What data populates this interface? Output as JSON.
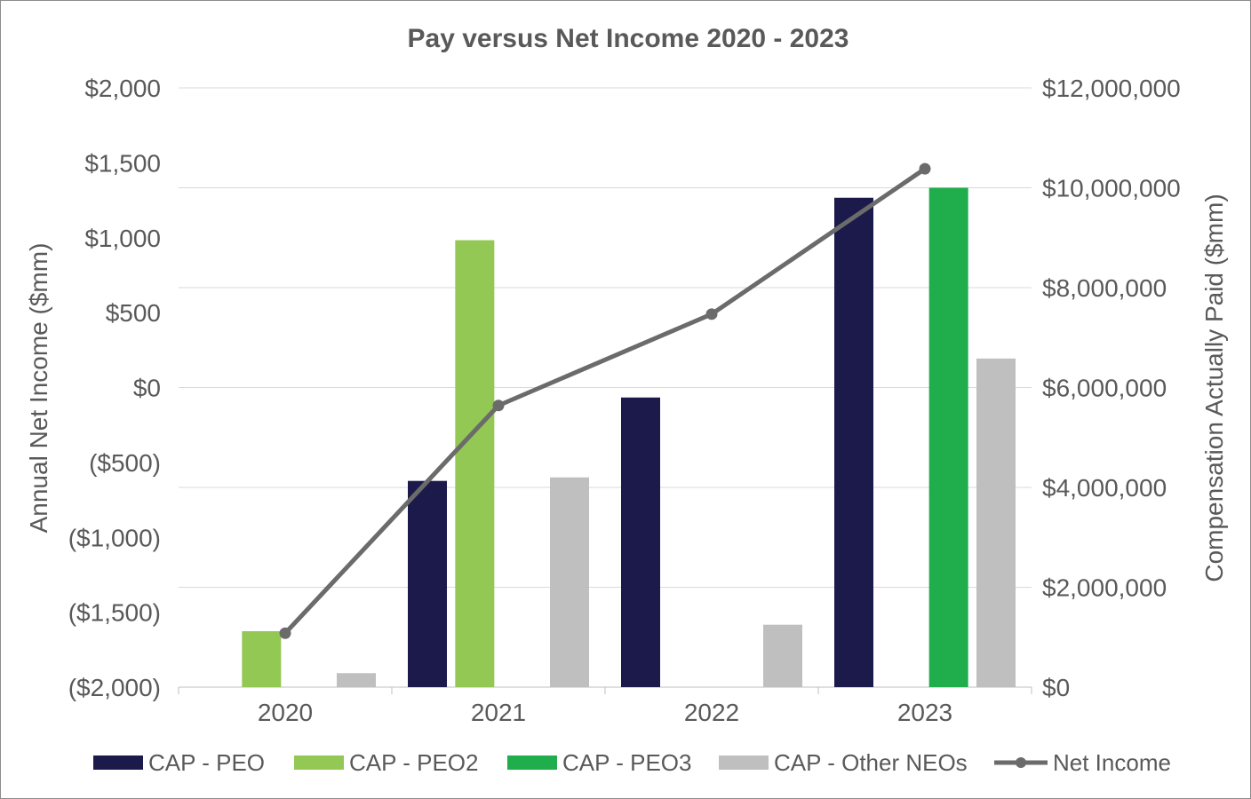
{
  "chart_data": {
    "type": "bar",
    "title": "Pay versus Net Income 2020 - 2023",
    "categories": [
      "2020",
      "2021",
      "2022",
      "2023"
    ],
    "y_left": {
      "label": "Annual Net Income ($mm)",
      "ticks": [
        "$2,000",
        "$1,500",
        "$1,000",
        "$500",
        "$0",
        "($500)",
        "($1,000)",
        "($1,500)",
        "($2,000)"
      ],
      "range": [
        -2000,
        2000
      ]
    },
    "y_right": {
      "label": "Compensation Actually Paid ($mm)",
      "ticks": [
        "$12,000,000",
        "$10,000,000",
        "$8,000,000",
        "$6,000,000",
        "$4,000,000",
        "$2,000,000",
        "$0"
      ],
      "range": [
        0,
        12000000
      ]
    },
    "series": [
      {
        "name": "CAP - PEO",
        "axis": "right",
        "color": "#1c1a4a",
        "values": [
          null,
          4130000,
          5800000,
          9800000
        ]
      },
      {
        "name": "CAP - PEO2",
        "axis": "right",
        "color": "#92c853",
        "values": [
          1120000,
          8950000,
          null,
          null
        ]
      },
      {
        "name": "CAP - PEO3",
        "axis": "right",
        "color": "#20ad4b",
        "values": [
          null,
          null,
          null,
          10000000
        ]
      },
      {
        "name": "CAP - Other NEOs",
        "axis": "right",
        "color": "#bfbfbf",
        "values": [
          280000,
          4200000,
          1250000,
          6580000
        ]
      },
      {
        "name": "Net Income",
        "type": "line",
        "axis": "left",
        "color": "#6b6b6b",
        "values": [
          -1640,
          -120,
          490,
          1460
        ]
      }
    ],
    "grid": true,
    "legend_position": "bottom"
  }
}
